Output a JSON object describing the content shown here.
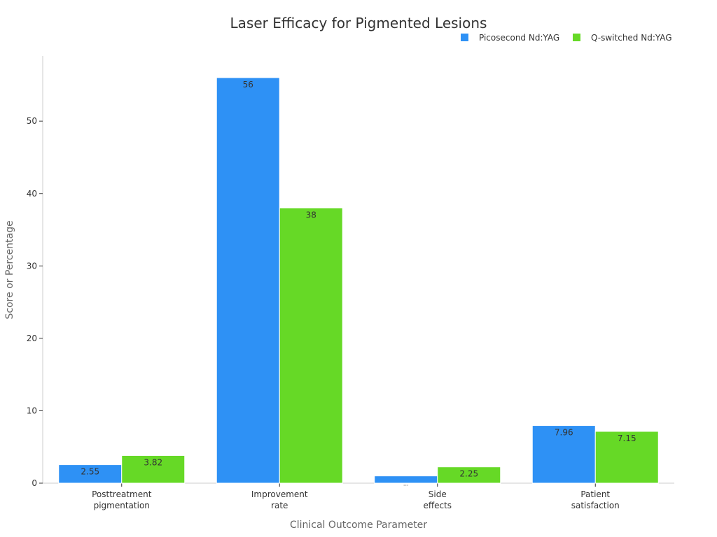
{
  "chart_data": {
    "type": "bar",
    "title": "Laser Efficacy for Pigmented Lesions",
    "xlabel": "Clinical Outcome Parameter",
    "ylabel": "Score or Percentage",
    "categories": [
      [
        "Posttreatment",
        "pigmentation"
      ],
      [
        "Improvement",
        "rate"
      ],
      [
        "Side",
        "effects"
      ],
      [
        "Patient",
        "satisfaction"
      ]
    ],
    "series": [
      {
        "name": "Picosecond Nd:YAG",
        "color": "#2e91f5",
        "values": [
          2.55,
          56,
          1,
          7.96
        ],
        "labels": [
          "2.55",
          "56",
          "...",
          "7.96"
        ]
      },
      {
        "name": "Q-switched Nd:YAG",
        "color": "#66d926",
        "values": [
          3.82,
          38,
          2.25,
          7.15
        ],
        "labels": [
          "3.82",
          "38",
          "2.25",
          "7.15"
        ]
      }
    ],
    "yticks": [
      0,
      10,
      20,
      30,
      40,
      50
    ],
    "ylim": [
      0,
      59
    ],
    "grid": false,
    "legend_position": "top-right"
  }
}
